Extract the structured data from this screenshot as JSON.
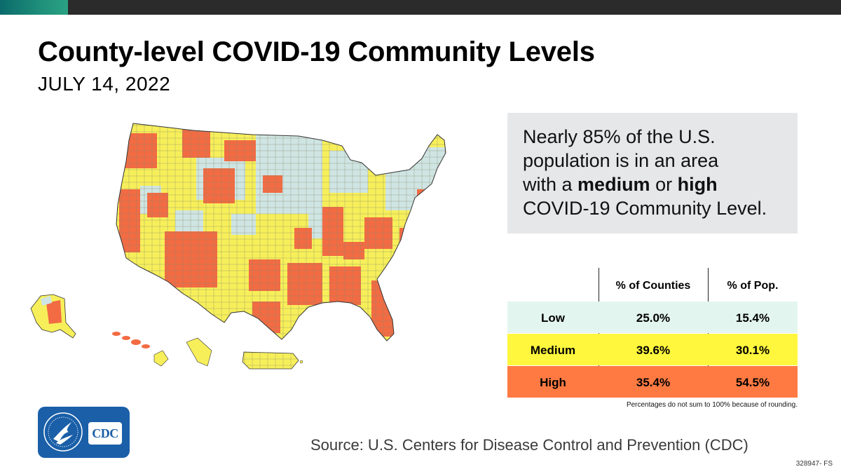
{
  "colors": {
    "low": "#e3f5ef",
    "medium": "#fff73d",
    "high": "#ff7a42",
    "low_map": "#cfe5e3",
    "medium_map": "#f7ef5a",
    "high_map": "#f26b43"
  },
  "header": {
    "title": "County-level COVID-19 Community Levels",
    "date": "JULY 14, 2022"
  },
  "callout": {
    "line1": "Nearly 85% of the U.S.",
    "line2": "population is in an area",
    "line3_pre": "with a ",
    "line3_medium": "medium",
    "line3_mid": " or ",
    "line3_high": "high",
    "line4": "COVID-19 Community Level."
  },
  "table": {
    "headers": [
      "% of Counties",
      "% of Pop."
    ],
    "rows": [
      {
        "level": "Low",
        "counties": "25.0%",
        "population": "15.4%"
      },
      {
        "level": "Medium",
        "counties": "39.6%",
        "population": "30.1%"
      },
      {
        "level": "High",
        "counties": "35.4%",
        "population": "54.5%"
      }
    ],
    "footnote": "Percentages do not sum to 100% because of rounding."
  },
  "logo": {
    "cdc_text": "CDC"
  },
  "source": "Source: U.S. Centers for Disease Control and Prevention (CDC)",
  "code": "328947- FS"
}
